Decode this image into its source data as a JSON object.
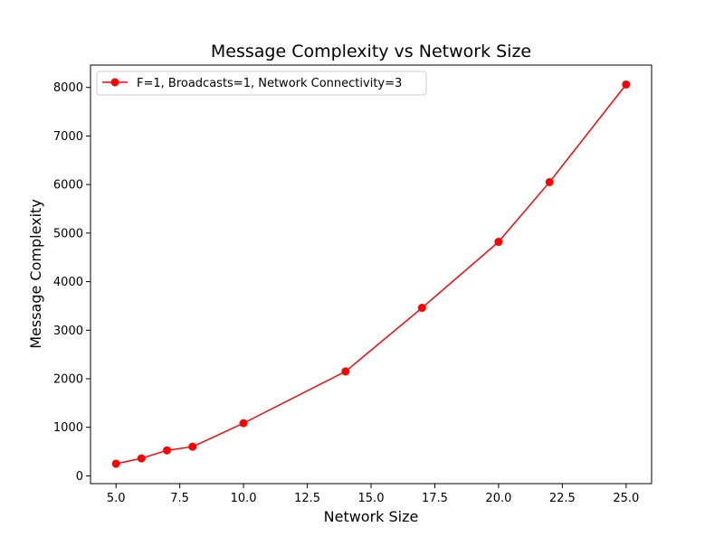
{
  "chart_data": {
    "type": "line",
    "title": "Message Complexity vs Network Size",
    "xlabel": "Network Size",
    "ylabel": "Message Complexity",
    "xlim": [
      4.0,
      26.0
    ],
    "ylim": [
      -160,
      8460
    ],
    "xticks": [
      5.0,
      7.5,
      10.0,
      12.5,
      15.0,
      17.5,
      20.0,
      22.5,
      25.0
    ],
    "xtick_labels": [
      "5.0",
      "7.5",
      "10.0",
      "12.5",
      "15.0",
      "17.5",
      "20.0",
      "22.5",
      "25.0"
    ],
    "yticks": [
      0,
      1000,
      2000,
      3000,
      4000,
      5000,
      6000,
      7000,
      8000
    ],
    "ytick_labels": [
      "0",
      "1000",
      "2000",
      "3000",
      "4000",
      "5000",
      "6000",
      "7000",
      "8000"
    ],
    "grid": false,
    "legend_position": "top-left",
    "series": [
      {
        "name": "F=1, Broadcasts=1, Network Connectivity=3",
        "color": "#ff0000",
        "marker": "circle",
        "x": [
          5,
          6,
          7,
          8,
          10,
          14,
          17,
          20,
          22,
          25
        ],
        "y": [
          250,
          360,
          525,
          600,
          1085,
          2150,
          3460,
          4820,
          6050,
          8060
        ]
      }
    ]
  }
}
